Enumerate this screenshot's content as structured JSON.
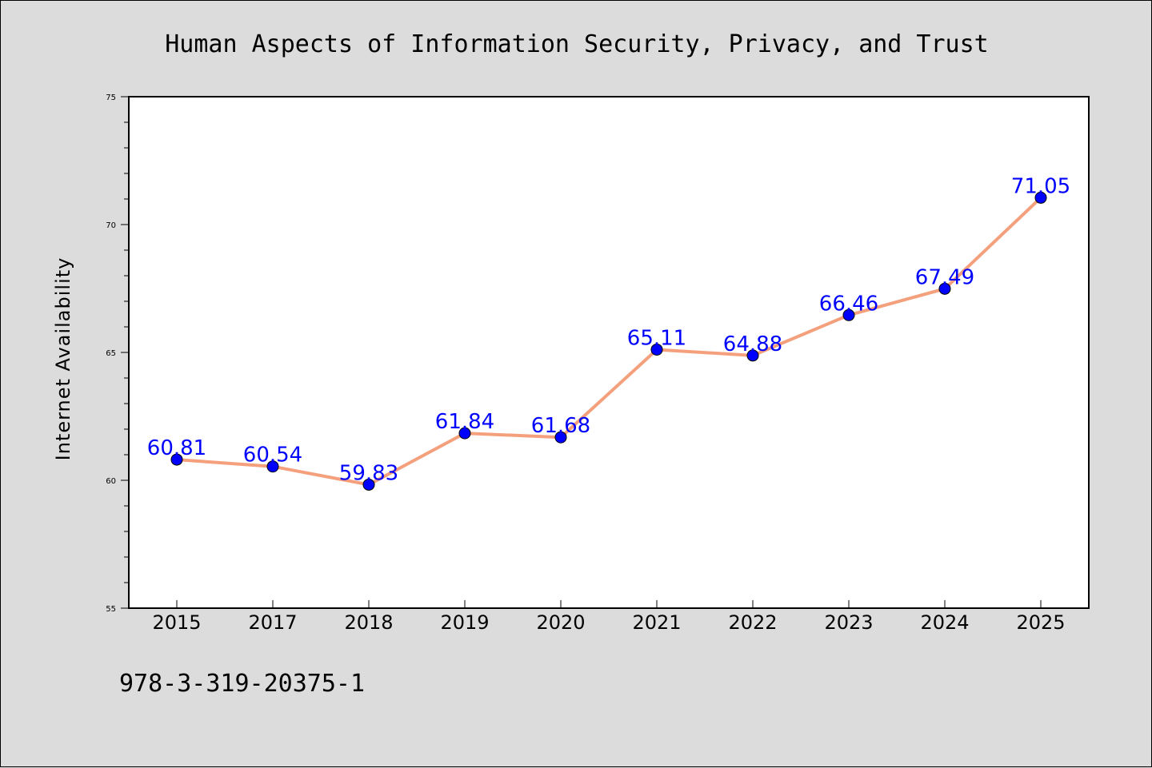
{
  "chart_data": {
    "type": "line",
    "title": "Human Aspects of Information Security, Privacy, and Trust",
    "ylabel": "Internet Availability",
    "xlabel": "",
    "categories": [
      "2015",
      "2017",
      "2018",
      "2019",
      "2020",
      "2021",
      "2022",
      "2023",
      "2024",
      "2025"
    ],
    "series": [
      {
        "values": [
          60.81,
          60.54,
          59.83,
          61.84,
          61.68,
          65.11,
          64.88,
          66.46,
          67.49,
          71.05
        ],
        "labels": [
          "60.81",
          "60.54",
          "59.83",
          "61.84",
          "61.68",
          "65.11",
          "64.88",
          "66.46",
          "67.49",
          "71.05"
        ],
        "line_color": "#f4a07c",
        "marker_color": "#0000ff"
      }
    ],
    "ylim": [
      55,
      75
    ],
    "yticks": [
      "55",
      "60",
      "65",
      "70",
      "75"
    ],
    "grid": false,
    "legend": "none"
  },
  "footer": {
    "isbn": "978-3-319-20375-1"
  }
}
